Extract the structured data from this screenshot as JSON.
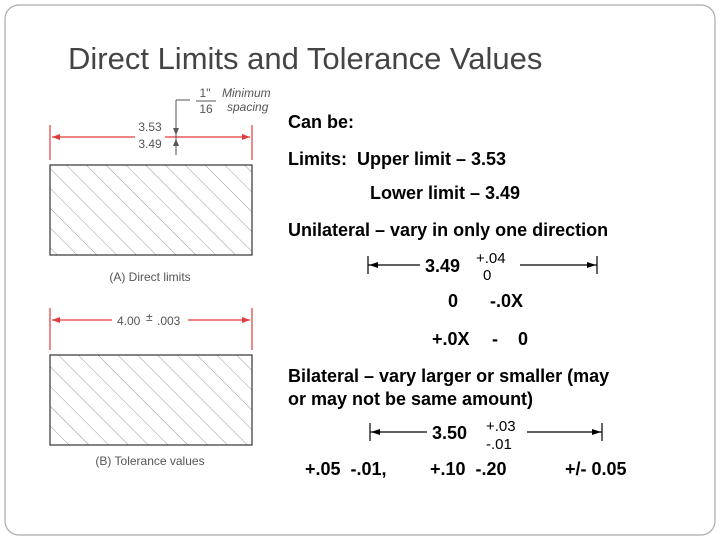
{
  "title": "Direct Limits and Tolerance Values",
  "figure_a": {
    "upper": "3.53",
    "lower": "3.49",
    "spacing_num": "1\"",
    "spacing_den": "16",
    "spacing_label_1": "Minimum",
    "spacing_label_2": "spacing",
    "caption": "(A) Direct limits"
  },
  "figure_b": {
    "dimension": "4.00",
    "plus_minus": "±",
    "tolerance": ".003",
    "caption": "(B) Tolerance values"
  },
  "body": {
    "heading": "Can be:",
    "limits_upper": "Limits:  Upper limit – 3.53",
    "limits_lower": "Lower limit – 3.49",
    "unilateral": "Unilateral – vary in only one direction",
    "unilateral_example": {
      "base": "3.49",
      "plus": "+.04",
      "minus": "0"
    },
    "unilateral_options_1": [
      "0",
      "-.0X"
    ],
    "unilateral_options_2": [
      "+.0X",
      "-",
      "0"
    ],
    "bilateral_1": "Bilateral – vary larger or smaller (may",
    "bilateral_2": "or may not be same amount)",
    "bilateral_example": {
      "base": "3.50",
      "plus": "+.03",
      "minus": "-.01"
    },
    "bilateral_options": [
      "+.05  -.01,",
      "+.10  -.20",
      "+/- 0.05"
    ]
  }
}
